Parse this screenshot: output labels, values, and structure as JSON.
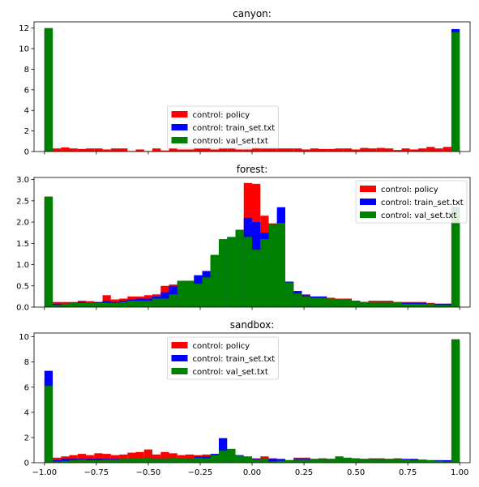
{
  "chart_data": [
    {
      "type": "histogram",
      "title": "canyon:",
      "xlim": [
        -1.05,
        1.05
      ],
      "ylim": [
        0,
        12.6
      ],
      "yticks": [
        0,
        2,
        4,
        6,
        8,
        10,
        12
      ],
      "yticklabels": [
        "0",
        "2",
        "4",
        "6",
        "8",
        "10",
        "12"
      ],
      "legend_loc": "lower-center",
      "bin_centers": [
        -0.98,
        -0.94,
        -0.9,
        -0.86,
        -0.82,
        -0.78,
        -0.74,
        -0.7,
        -0.66,
        -0.62,
        -0.58,
        -0.54,
        -0.5,
        -0.46,
        -0.42,
        -0.38,
        -0.34,
        -0.3,
        -0.26,
        -0.22,
        -0.18,
        -0.14,
        -0.1,
        -0.06,
        -0.02,
        0.02,
        0.06,
        0.1,
        0.14,
        0.18,
        0.22,
        0.26,
        0.3,
        0.34,
        0.38,
        0.42,
        0.46,
        0.5,
        0.54,
        0.58,
        0.62,
        0.66,
        0.7,
        0.74,
        0.78,
        0.82,
        0.86,
        0.9,
        0.94,
        0.98
      ],
      "series": [
        {
          "name": "control: policy",
          "color": "#ff0000",
          "values": [
            11.9,
            0.3,
            0.4,
            0.3,
            0.25,
            0.3,
            0.3,
            0.2,
            0.3,
            0.3,
            0.05,
            0.2,
            0.05,
            0.3,
            0.1,
            0.3,
            0.2,
            0.2,
            0.3,
            0.3,
            0.2,
            0.3,
            0.3,
            0.2,
            0.2,
            0.4,
            0.3,
            0.3,
            0.3,
            0.3,
            0.3,
            0.2,
            0.3,
            0.25,
            0.25,
            0.3,
            0.3,
            0.2,
            0.35,
            0.3,
            0.35,
            0.3,
            0.15,
            0.3,
            0.2,
            0.3,
            0.45,
            0.3,
            0.45,
            0.5
          ]
        },
        {
          "name": "control: train_set.txt",
          "color": "#0000ff",
          "values": [
            11.8,
            0,
            0,
            0,
            0,
            0,
            0,
            0,
            0,
            0,
            0,
            0,
            0,
            0,
            0,
            0,
            0,
            0,
            0,
            0,
            0,
            0,
            0,
            0,
            0,
            0,
            0,
            0,
            0,
            0,
            0,
            0,
            0,
            0,
            0,
            0,
            0,
            0,
            0,
            0,
            0,
            0,
            0,
            0,
            0,
            0,
            0,
            0,
            0,
            11.9
          ]
        },
        {
          "name": "control: val_set.txt",
          "color": "#008000",
          "values": [
            12.0,
            0,
            0,
            0,
            0,
            0,
            0,
            0,
            0,
            0,
            0,
            0,
            0,
            0,
            0,
            0,
            0,
            0,
            0,
            0,
            0,
            0,
            0,
            0,
            0,
            0,
            0,
            0,
            0,
            0,
            0,
            0,
            0,
            0,
            0,
            0,
            0,
            0,
            0,
            0,
            0,
            0,
            0,
            0,
            0,
            0,
            0,
            0,
            0,
            11.6
          ]
        }
      ]
    },
    {
      "type": "histogram",
      "title": "forest:",
      "xlim": [
        -1.05,
        1.05
      ],
      "ylim": [
        0,
        3.05
      ],
      "yticks": [
        0,
        0.5,
        1,
        1.5,
        2,
        2.5,
        3
      ],
      "yticklabels": [
        "0.0",
        "0.5",
        "1.0",
        "1.5",
        "2.0",
        "2.5",
        "3.0"
      ],
      "legend_loc": "upper-right",
      "bin_centers": [
        -0.98,
        -0.94,
        -0.9,
        -0.86,
        -0.82,
        -0.78,
        -0.74,
        -0.7,
        -0.66,
        -0.62,
        -0.58,
        -0.54,
        -0.5,
        -0.46,
        -0.42,
        -0.38,
        -0.34,
        -0.3,
        -0.26,
        -0.22,
        -0.18,
        -0.14,
        -0.1,
        -0.06,
        -0.02,
        0.02,
        0.06,
        0.1,
        0.14,
        0.18,
        0.22,
        0.26,
        0.3,
        0.34,
        0.38,
        0.42,
        0.46,
        0.5,
        0.54,
        0.58,
        0.62,
        0.66,
        0.7,
        0.74,
        0.78,
        0.82,
        0.86,
        0.9,
        0.94,
        0.98
      ],
      "series": [
        {
          "name": "control: policy",
          "color": "#ff0000",
          "values": [
            2.6,
            0.12,
            0.12,
            0.12,
            0.15,
            0.14,
            0.12,
            0.28,
            0.18,
            0.2,
            0.25,
            0.25,
            0.28,
            0.3,
            0.5,
            0.53,
            0.6,
            0.62,
            0.6,
            0.7,
            1.2,
            1.5,
            1.6,
            1.8,
            2.92,
            2.9,
            2.15,
            1.97,
            2.3,
            0.58,
            0.35,
            0.3,
            0.25,
            0.25,
            0.22,
            0.2,
            0.2,
            0.15,
            0.12,
            0.15,
            0.15,
            0.15,
            0.12,
            0.12,
            0.12,
            0.12,
            0.1,
            0.08,
            0.08,
            2.3
          ]
        },
        {
          "name": "control: train_set.txt",
          "color": "#0000ff",
          "values": [
            2.5,
            0.08,
            0.08,
            0.1,
            0.12,
            0.1,
            0.12,
            0.15,
            0.12,
            0.15,
            0.18,
            0.2,
            0.2,
            0.25,
            0.35,
            0.5,
            0.6,
            0.62,
            0.75,
            0.85,
            1.2,
            1.5,
            1.65,
            1.7,
            2.1,
            2.0,
            1.75,
            1.95,
            2.35,
            0.6,
            0.38,
            0.28,
            0.25,
            0.25,
            0.2,
            0.18,
            0.18,
            0.15,
            0.12,
            0.12,
            0.12,
            0.12,
            0.1,
            0.1,
            0.1,
            0.1,
            0.08,
            0.08,
            0.08,
            2.35
          ]
        },
        {
          "name": "control: val_set.txt",
          "color": "#008000",
          "values": [
            2.6,
            0.05,
            0.08,
            0.1,
            0.1,
            0.1,
            0.1,
            0.1,
            0.1,
            0.12,
            0.15,
            0.15,
            0.15,
            0.2,
            0.2,
            0.3,
            0.62,
            0.62,
            0.55,
            0.7,
            1.23,
            1.6,
            1.65,
            1.82,
            1.65,
            1.35,
            1.6,
            1.95,
            1.98,
            0.58,
            0.32,
            0.25,
            0.22,
            0.22,
            0.2,
            0.18,
            0.18,
            0.15,
            0.12,
            0.12,
            0.12,
            0.12,
            0.12,
            0.08,
            0.08,
            0.08,
            0.08,
            0.05,
            0.05,
            2.33
          ]
        }
      ]
    },
    {
      "type": "histogram",
      "title": "sandbox:",
      "xlim": [
        -1.05,
        1.05
      ],
      "ylim": [
        0,
        10.3
      ],
      "yticks": [
        0,
        2,
        4,
        6,
        8,
        10
      ],
      "yticklabels": [
        "0",
        "2",
        "4",
        "6",
        "8",
        "10"
      ],
      "xticks": [
        -1,
        -0.75,
        -0.5,
        -0.25,
        0,
        0.25,
        0.5,
        0.75,
        1
      ],
      "xticklabels": [
        "−1.00",
        "−0.75",
        "−0.50",
        "−0.25",
        "0.00",
        "0.25",
        "0.50",
        "0.75",
        "1.00"
      ],
      "legend_loc": "upper-center",
      "bin_centers": [
        -0.98,
        -0.94,
        -0.9,
        -0.86,
        -0.82,
        -0.78,
        -0.74,
        -0.7,
        -0.66,
        -0.62,
        -0.58,
        -0.54,
        -0.5,
        -0.46,
        -0.42,
        -0.38,
        -0.34,
        -0.3,
        -0.26,
        -0.22,
        -0.18,
        -0.14,
        -0.1,
        -0.06,
        -0.02,
        0.02,
        0.06,
        0.1,
        0.14,
        0.18,
        0.22,
        0.26,
        0.3,
        0.34,
        0.38,
        0.42,
        0.46,
        0.5,
        0.54,
        0.58,
        0.62,
        0.66,
        0.7,
        0.74,
        0.78,
        0.82,
        0.86,
        0.9,
        0.94,
        0.98
      ],
      "series": [
        {
          "name": "control: policy",
          "color": "#ff0000",
          "values": [
            6.5,
            0.4,
            0.5,
            0.6,
            0.7,
            0.6,
            0.75,
            0.7,
            0.6,
            0.65,
            0.8,
            0.85,
            1.05,
            0.65,
            0.85,
            0.75,
            0.6,
            0.65,
            0.6,
            0.65,
            0.5,
            1.0,
            0.9,
            0.5,
            0.45,
            0.35,
            0.5,
            0.35,
            0.2,
            0.2,
            0.4,
            0.4,
            0.3,
            0.35,
            0.3,
            0.35,
            0.3,
            0.35,
            0.3,
            0.35,
            0.35,
            0.3,
            0.35,
            0.3,
            0.2,
            0.2,
            0.2,
            0.2,
            0.15,
            9.8
          ]
        },
        {
          "name": "control: train_set.txt",
          "color": "#0000ff",
          "values": [
            7.3,
            0.2,
            0.3,
            0.3,
            0.3,
            0.3,
            0.3,
            0.3,
            0.3,
            0.3,
            0.3,
            0.3,
            0.3,
            0.3,
            0.3,
            0.3,
            0.3,
            0.3,
            0.5,
            0.5,
            0.7,
            1.95,
            1.1,
            0.6,
            0.4,
            0.3,
            0.3,
            0.3,
            0.3,
            0.2,
            0.3,
            0.3,
            0.3,
            0.3,
            0.3,
            0.3,
            0.3,
            0.3,
            0.3,
            0.3,
            0.3,
            0.3,
            0.3,
            0.3,
            0.3,
            0.2,
            0.2,
            0.2,
            0.2,
            9.5
          ]
        },
        {
          "name": "control: val_set.txt",
          "color": "#008000",
          "values": [
            6.1,
            0.1,
            0.15,
            0.2,
            0.25,
            0.2,
            0.2,
            0.25,
            0.25,
            0.3,
            0.35,
            0.35,
            0.4,
            0.3,
            0.3,
            0.4,
            0.35,
            0.3,
            0.4,
            0.35,
            0.6,
            0.95,
            1.1,
            0.55,
            0.5,
            0.25,
            0.3,
            0.1,
            0.15,
            0.2,
            0.25,
            0.25,
            0.3,
            0.3,
            0.3,
            0.5,
            0.4,
            0.35,
            0.3,
            0.3,
            0.3,
            0.3,
            0.3,
            0.25,
            0.2,
            0.25,
            0.2,
            0.15,
            0.1,
            9.8
          ]
        }
      ]
    }
  ]
}
